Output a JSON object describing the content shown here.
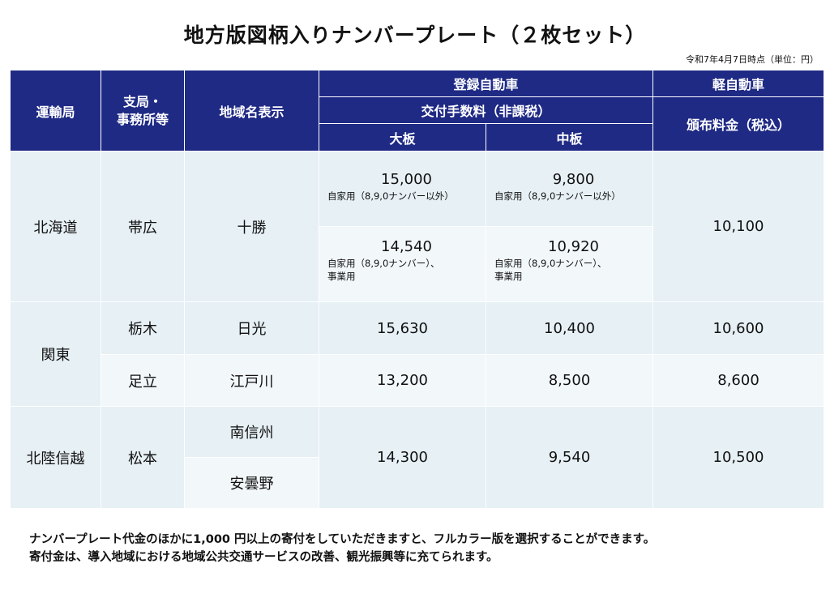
{
  "title": "地方版図柄入りナンバープレート（２枚セット）",
  "as_of": "令和7年4月7日時点（単位：円）",
  "header": {
    "bureau": "運輸局",
    "branch": "支局・\n事務所等",
    "region": "地域名表示",
    "registered": "登録自動車",
    "fee_type": "交付手数料（非課税）",
    "large": "大板",
    "medium": "中板",
    "kei": "軽自動車",
    "kei_fee": "頒布料金（税込）"
  },
  "rows": {
    "hokkaido": {
      "bureau": "北海道",
      "branch": "帯広",
      "region": "十勝",
      "large_private": "15,000",
      "large_private_note": "自家用（8,9,0ナンバー以外）",
      "medium_private": "9,800",
      "medium_private_note": "自家用（8,9,0ナンバー以外）",
      "large_other": "14,540",
      "large_other_note": "自家用（8,9,0ナンバー）、\n事業用",
      "medium_other": "10,920",
      "medium_other_note": "自家用（8,9,0ナンバー）、\n事業用",
      "kei": "10,100"
    },
    "kanto": {
      "bureau": "関東",
      "tochigi": {
        "branch": "栃木",
        "region": "日光",
        "large": "15,630",
        "medium": "10,400",
        "kei": "10,600"
      },
      "adachi": {
        "branch": "足立",
        "region": "江戸川",
        "large": "13,200",
        "medium": "8,500",
        "kei": "8,600"
      }
    },
    "hokuriku": {
      "bureau": "北陸信越",
      "branch": "松本",
      "region1": "南信州",
      "region2": "安曇野",
      "large": "14,300",
      "medium": "9,540",
      "kei": "10,500"
    }
  },
  "footer": {
    "line1": "ナンバープレート代金のほかに1,000 円以上の寄付をしていただきますと、フルカラー版を選択することができます。",
    "line2": "寄付金は、導入地域における地域公共交通サービスの改善、観光振興等に充てられます。"
  }
}
